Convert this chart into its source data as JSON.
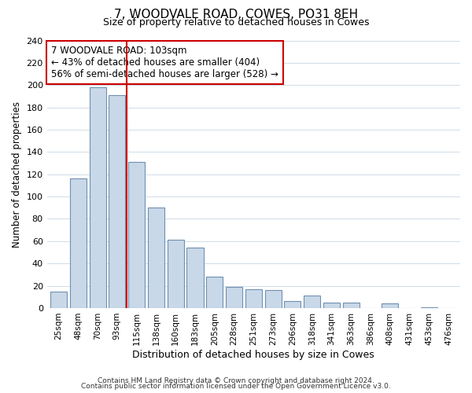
{
  "title": "7, WOODVALE ROAD, COWES, PO31 8EH",
  "subtitle": "Size of property relative to detached houses in Cowes",
  "xlabel": "Distribution of detached houses by size in Cowes",
  "ylabel": "Number of detached properties",
  "bar_labels": [
    "25sqm",
    "48sqm",
    "70sqm",
    "93sqm",
    "115sqm",
    "138sqm",
    "160sqm",
    "183sqm",
    "205sqm",
    "228sqm",
    "251sqm",
    "273sqm",
    "296sqm",
    "318sqm",
    "341sqm",
    "363sqm",
    "386sqm",
    "408sqm",
    "431sqm",
    "453sqm",
    "476sqm"
  ],
  "bar_values": [
    15,
    116,
    198,
    191,
    131,
    90,
    61,
    54,
    28,
    19,
    17,
    16,
    6,
    11,
    5,
    5,
    0,
    4,
    0,
    1,
    0
  ],
  "bar_color": "#c8d8e8",
  "bar_edgecolor": "#7090b0",
  "vline_x": 3.5,
  "vline_color": "#cc0000",
  "annotation_text": "7 WOODVALE ROAD: 103sqm\n← 43% of detached houses are smaller (404)\n56% of semi-detached houses are larger (528) →",
  "annotation_box_edgecolor": "#cc0000",
  "ylim": [
    0,
    240
  ],
  "yticks": [
    0,
    20,
    40,
    60,
    80,
    100,
    120,
    140,
    160,
    180,
    200,
    220,
    240
  ],
  "footer_line1": "Contains HM Land Registry data © Crown copyright and database right 2024.",
  "footer_line2": "Contains public sector information licensed under the Open Government Licence v3.0.",
  "background_color": "#ffffff",
  "grid_color": "#d0dce8"
}
